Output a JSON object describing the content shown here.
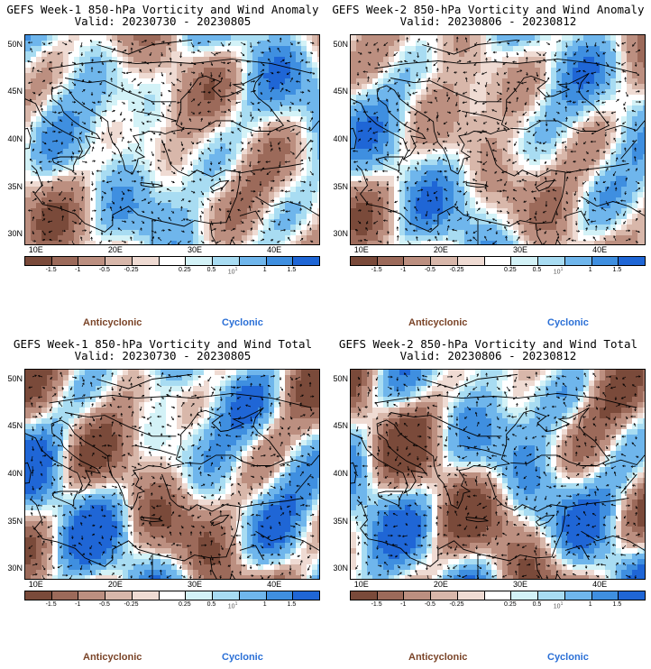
{
  "panels": [
    {
      "title": "GEFS Week-1 850-hPa Vorticity and Wind Anomaly",
      "valid": "Valid: 20230730 - 20230805",
      "variant": 0
    },
    {
      "title": "GEFS Week-2 850-hPa Vorticity and Wind Anomaly",
      "valid": "Valid: 20230806 - 20230812",
      "variant": 1
    },
    {
      "title": "GEFS Week-1 850-hPa Vorticity and Wind Total",
      "valid": "Valid: 20230730 - 20230805",
      "variant": 2
    },
    {
      "title": "GEFS Week-2 850-hPa Vorticity and Wind Total",
      "valid": "Valid: 20230806 - 20230812",
      "variant": 3
    }
  ],
  "lat_labels": [
    "50N",
    "45N",
    "40N",
    "35N",
    "30N"
  ],
  "lon_labels": [
    "10E",
    "20E",
    "30E",
    "40E"
  ],
  "colorbar_labels": [
    "-1.5",
    "-1",
    "-0.5",
    "-0.25",
    "0.25",
    "0.5",
    "1",
    "1.5"
  ],
  "colorbar_unit": "10",
  "colorbar_unit_exp": "1",
  "colorbar_colors": [
    "#7a4a3a",
    "#9c6a5a",
    "#bc8f80",
    "#d8b7aa",
    "#efdbd3",
    "#ffffff",
    "#d3f2f7",
    "#a8dcf2",
    "#6fb6ec",
    "#3f8fe0",
    "#1f66d6"
  ],
  "legend": {
    "anticyclonic": "Anticyclonic",
    "cyclonic": "Cyclonic"
  },
  "colors": {
    "anticyclonic": "#7a4428",
    "cyclonic": "#2a6fd6"
  }
}
